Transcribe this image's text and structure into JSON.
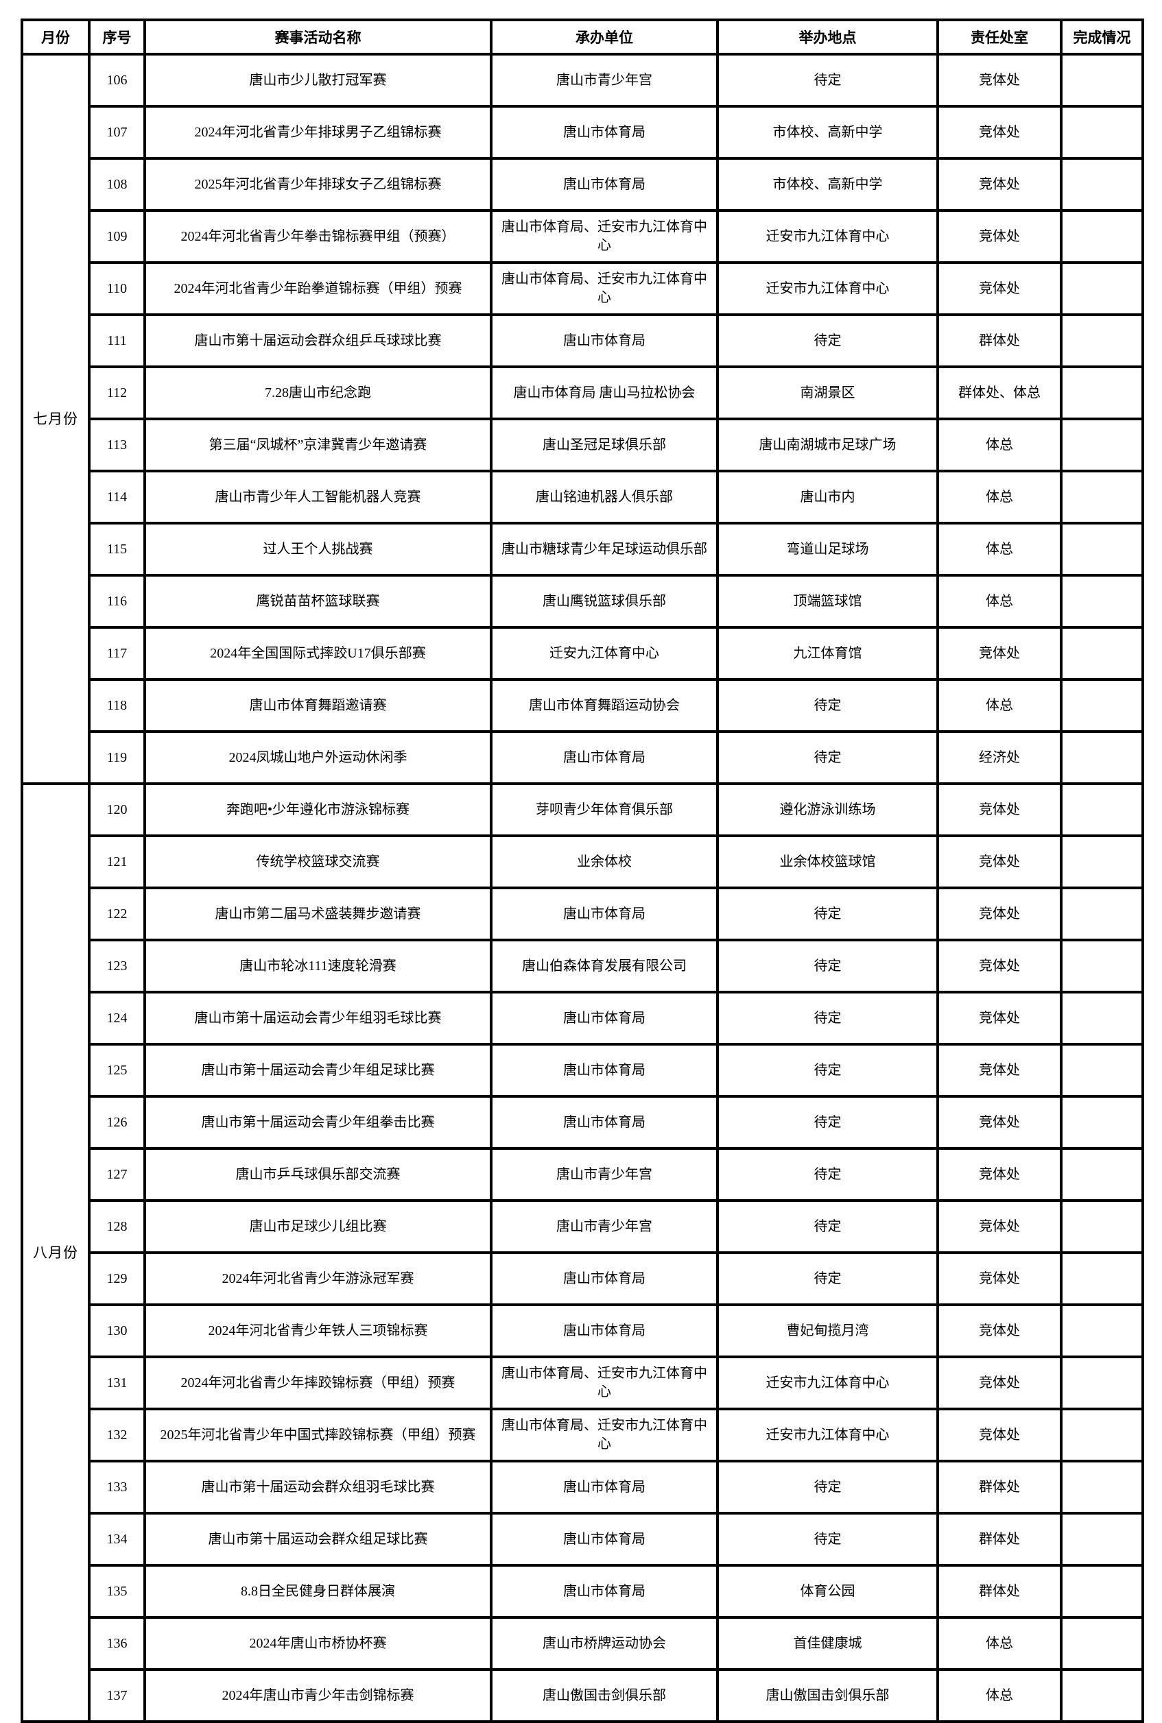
{
  "colors": {
    "border": "#000000",
    "text": "#000000",
    "background": "#ffffff"
  },
  "table": {
    "headers": [
      "月份",
      "序号",
      "赛事活动名称",
      "承办单位",
      "举办地点",
      "责任处室",
      "完成情况"
    ],
    "months": [
      {
        "label": "七月份",
        "row_count": 14
      },
      {
        "label": "八月份",
        "row_count": 18
      }
    ],
    "rows": [
      {
        "no": "106",
        "event": "唐山市少儿散打冠军赛",
        "organizer": "唐山市青少年宫",
        "venue": "待定",
        "office": "竞体处",
        "status": ""
      },
      {
        "no": "107",
        "event": "2024年河北省青少年排球男子乙组锦标赛",
        "organizer": "唐山市体育局",
        "venue": "市体校、高新中学",
        "office": "竞体处",
        "status": ""
      },
      {
        "no": "108",
        "event": "2025年河北省青少年排球女子乙组锦标赛",
        "organizer": "唐山市体育局",
        "venue": "市体校、高新中学",
        "office": "竞体处",
        "status": ""
      },
      {
        "no": "109",
        "event": "2024年河北省青少年拳击锦标赛甲组（预赛）",
        "organizer": "唐山市体育局、迁安市九江体育中心",
        "venue": "迁安市九江体育中心",
        "office": "竞体处",
        "status": ""
      },
      {
        "no": "110",
        "event": "2024年河北省青少年跆拳道锦标赛（甲组）预赛",
        "organizer": "唐山市体育局、迁安市九江体育中心",
        "venue": "迁安市九江体育中心",
        "office": "竞体处",
        "status": ""
      },
      {
        "no": "111",
        "event": "唐山市第十届运动会群众组乒乓球球比赛",
        "organizer": "唐山市体育局",
        "venue": "待定",
        "office": "群体处",
        "status": ""
      },
      {
        "no": "112",
        "event": "7.28唐山市纪念跑",
        "organizer": "唐山市体育局 唐山马拉松协会",
        "venue": "南湖景区",
        "office": "群体处、体总",
        "status": ""
      },
      {
        "no": "113",
        "event": "第三届“凤城杯”京津冀青少年邀请赛",
        "organizer": "唐山圣冠足球俱乐部",
        "venue": "唐山南湖城市足球广场",
        "office": "体总",
        "status": ""
      },
      {
        "no": "114",
        "event": "唐山市青少年人工智能机器人竞赛",
        "organizer": "唐山铭迪机器人俱乐部",
        "venue": "唐山市内",
        "office": "体总",
        "status": ""
      },
      {
        "no": "115",
        "event": "过人王个人挑战赛",
        "organizer": "唐山市糖球青少年足球运动俱乐部",
        "venue": "弯道山足球场",
        "office": "体总",
        "status": ""
      },
      {
        "no": "116",
        "event": "鹰锐苗苗杯篮球联赛",
        "organizer": "唐山鹰锐篮球俱乐部",
        "venue": "顶端篮球馆",
        "office": "体总",
        "status": ""
      },
      {
        "no": "117",
        "event": "2024年全国国际式摔跤U17俱乐部赛",
        "organizer": "迁安九江体育中心",
        "venue": "九江体育馆",
        "office": "竞体处",
        "status": ""
      },
      {
        "no": "118",
        "event": "唐山市体育舞蹈邀请赛",
        "organizer": "唐山市体育舞蹈运动协会",
        "venue": "待定",
        "office": "体总",
        "status": ""
      },
      {
        "no": "119",
        "event": "2024凤城山地户外运动休闲季",
        "organizer": "唐山市体育局",
        "venue": "待定",
        "office": "经济处",
        "status": ""
      },
      {
        "no": "120",
        "event": "奔跑吧•少年遵化市游泳锦标赛",
        "organizer": "芽呗青少年体育俱乐部",
        "venue": "遵化游泳训练场",
        "office": "竞体处",
        "status": ""
      },
      {
        "no": "121",
        "event": "传统学校篮球交流赛",
        "organizer": "业余体校",
        "venue": "业余体校篮球馆",
        "office": "竞体处",
        "status": ""
      },
      {
        "no": "122",
        "event": "唐山市第二届马术盛装舞步邀请赛",
        "organizer": "唐山市体育局",
        "venue": "待定",
        "office": "竞体处",
        "status": ""
      },
      {
        "no": "123",
        "event": "唐山市轮冰111速度轮滑赛",
        "organizer": "唐山伯森体育发展有限公司",
        "venue": "待定",
        "office": "竞体处",
        "status": ""
      },
      {
        "no": "124",
        "event": "唐山市第十届运动会青少年组羽毛球比赛",
        "organizer": "唐山市体育局",
        "venue": "待定",
        "office": "竞体处",
        "status": ""
      },
      {
        "no": "125",
        "event": "唐山市第十届运动会青少年组足球比赛",
        "organizer": "唐山市体育局",
        "venue": "待定",
        "office": "竞体处",
        "status": ""
      },
      {
        "no": "126",
        "event": "唐山市第十届运动会青少年组拳击比赛",
        "organizer": "唐山市体育局",
        "venue": "待定",
        "office": "竞体处",
        "status": ""
      },
      {
        "no": "127",
        "event": "唐山市乒乓球俱乐部交流赛",
        "organizer": "唐山市青少年宫",
        "venue": "待定",
        "office": "竞体处",
        "status": ""
      },
      {
        "no": "128",
        "event": "唐山市足球少儿组比赛",
        "organizer": "唐山市青少年宫",
        "venue": "待定",
        "office": "竞体处",
        "status": ""
      },
      {
        "no": "129",
        "event": "2024年河北省青少年游泳冠军赛",
        "organizer": "唐山市体育局",
        "venue": "待定",
        "office": "竞体处",
        "status": ""
      },
      {
        "no": "130",
        "event": "2024年河北省青少年铁人三项锦标赛",
        "organizer": "唐山市体育局",
        "venue": "曹妃甸揽月湾",
        "office": "竞体处",
        "status": ""
      },
      {
        "no": "131",
        "event": "2024年河北省青少年摔跤锦标赛（甲组）预赛",
        "organizer": "唐山市体育局、迁安市九江体育中心",
        "venue": "迁安市九江体育中心",
        "office": "竞体处",
        "status": ""
      },
      {
        "no": "132",
        "event": "2025年河北省青少年中国式摔跤锦标赛（甲组）预赛",
        "organizer": "唐山市体育局、迁安市九江体育中心",
        "venue": "迁安市九江体育中心",
        "office": "竞体处",
        "status": ""
      },
      {
        "no": "133",
        "event": "唐山市第十届运动会群众组羽毛球比赛",
        "organizer": "唐山市体育局",
        "venue": "待定",
        "office": "群体处",
        "status": ""
      },
      {
        "no": "134",
        "event": "唐山市第十届运动会群众组足球比赛",
        "organizer": "唐山市体育局",
        "venue": "待定",
        "office": "群体处",
        "status": ""
      },
      {
        "no": "135",
        "event": "8.8日全民健身日群体展演",
        "organizer": "唐山市体育局",
        "venue": "体育公园",
        "office": "群体处",
        "status": ""
      },
      {
        "no": "136",
        "event": "2024年唐山市桥协杯赛",
        "organizer": "唐山市桥牌运动协会",
        "venue": "首佳健康城",
        "office": "体总",
        "status": ""
      },
      {
        "no": "137",
        "event": "2024年唐山市青少年击剑锦标赛",
        "organizer": "唐山傲国击剑俱乐部",
        "venue": "唐山傲国击剑俱乐部",
        "office": "体总",
        "status": ""
      }
    ]
  }
}
